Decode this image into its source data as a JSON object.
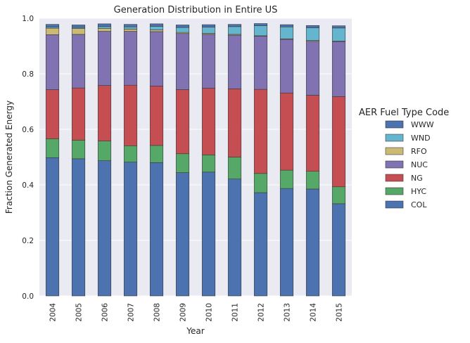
{
  "chart_data": {
    "type": "bar",
    "stacked": true,
    "title": "Generation Distribution in Entire US",
    "xlabel": "Year",
    "ylabel": "Fraction Generated Energy",
    "ylim": [
      0,
      1.0
    ],
    "yticks": [
      "0.0",
      "0.2",
      "0.4",
      "0.6",
      "0.8",
      "1.0"
    ],
    "grid": true,
    "legend_title": "AER Fuel Type Code",
    "legend_position": "right",
    "categories": [
      "2004",
      "2005",
      "2006",
      "2007",
      "2008",
      "2009",
      "2010",
      "2011",
      "2012",
      "2013",
      "2014",
      "2015"
    ],
    "series": [
      {
        "name": "COL",
        "color": "#4c72b0",
        "values": [
          0.498,
          0.494,
          0.487,
          0.482,
          0.48,
          0.444,
          0.446,
          0.421,
          0.372,
          0.387,
          0.385,
          0.332
        ]
      },
      {
        "name": "HYC",
        "color": "#55a868",
        "values": [
          0.068,
          0.067,
          0.071,
          0.059,
          0.062,
          0.068,
          0.062,
          0.079,
          0.069,
          0.066,
          0.064,
          0.061
        ]
      },
      {
        "name": "NG",
        "color": "#c44e52",
        "values": [
          0.177,
          0.188,
          0.2,
          0.218,
          0.214,
          0.231,
          0.24,
          0.246,
          0.303,
          0.278,
          0.274,
          0.325
        ]
      },
      {
        "name": "NUC",
        "color": "#8172b2",
        "values": [
          0.198,
          0.193,
          0.195,
          0.194,
          0.196,
          0.202,
          0.194,
          0.193,
          0.191,
          0.193,
          0.194,
          0.198
        ]
      },
      {
        "name": "RFO",
        "color": "#ccb974",
        "values": [
          0.023,
          0.021,
          0.01,
          0.008,
          0.006,
          0.004,
          0.004,
          0.003,
          0.002,
          0.002,
          0.003,
          0.002
        ]
      },
      {
        "name": "WND",
        "color": "#64b5cd",
        "values": [
          0.004,
          0.004,
          0.007,
          0.008,
          0.013,
          0.018,
          0.022,
          0.028,
          0.036,
          0.043,
          0.046,
          0.047
        ]
      },
      {
        "name": "WWW",
        "color": "#4c72b0",
        "values": [
          0.01,
          0.009,
          0.01,
          0.009,
          0.009,
          0.009,
          0.009,
          0.008,
          0.008,
          0.008,
          0.008,
          0.008
        ]
      }
    ]
  }
}
